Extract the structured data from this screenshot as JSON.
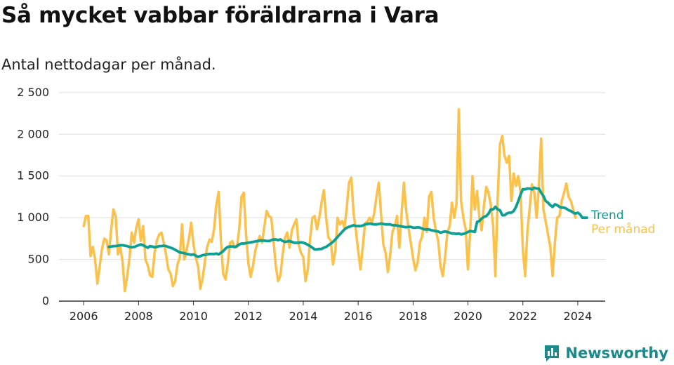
{
  "title": "Så mycket vabbar föräldrarna i Vara",
  "subtitle": "Antal nettodagar per månad.",
  "brand": {
    "name": "Newsworthy",
    "icon": "newsworthy-logo-icon",
    "color": "#1a8a8a"
  },
  "chart_data": {
    "type": "line",
    "xlabel": "",
    "ylabel": "",
    "xlim": [
      2005.1,
      2025.0
    ],
    "ylim": [
      0,
      2600
    ],
    "grid": true,
    "legend_placement": "right-end",
    "x_ticks": [
      2006,
      2008,
      2010,
      2012,
      2014,
      2016,
      2018,
      2020,
      2022,
      2024
    ],
    "x_tick_labels": [
      "2006",
      "2008",
      "2010",
      "2012",
      "2014",
      "2016",
      "2018",
      "2020",
      "2022",
      "2024"
    ],
    "y_ticks": [
      0,
      500,
      1000,
      1500,
      2000,
      2500
    ],
    "y_tick_labels": [
      "0",
      "500",
      "1 000",
      "1 500",
      "2 000",
      "2 500"
    ],
    "series": [
      {
        "name": "Per månad",
        "color": "#fbc14a",
        "start_year": 2006,
        "values": [
          900,
          1020,
          1020,
          540,
          650,
          500,
          210,
          420,
          620,
          750,
          730,
          560,
          850,
          1100,
          1020,
          560,
          650,
          470,
          120,
          300,
          500,
          820,
          700,
          880,
          980,
          720,
          900,
          500,
          430,
          310,
          290,
          580,
          720,
          800,
          820,
          700,
          560,
          380,
          330,
          180,
          240,
          440,
          520,
          920,
          500,
          610,
          750,
          940,
          680,
          520,
          420,
          150,
          270,
          480,
          650,
          740,
          710,
          860,
          1150,
          1310,
          720,
          330,
          260,
          450,
          700,
          720,
          640,
          650,
          860,
          1250,
          1300,
          800,
          450,
          290,
          420,
          600,
          700,
          780,
          700,
          900,
          1080,
          1020,
          1000,
          720,
          420,
          240,
          310,
          560,
          760,
          820,
          640,
          850,
          920,
          980,
          680,
          580,
          530,
          240,
          380,
          750,
          1000,
          1020,
          860,
          1000,
          1180,
          1330,
          1000,
          760,
          730,
          440,
          600,
          1000,
          920,
          960,
          880,
          1120,
          1420,
          1480,
          1050,
          850,
          610,
          380,
          650,
          930,
          950,
          1000,
          940,
          1050,
          1250,
          1420,
          1050,
          680,
          580,
          350,
          560,
          830,
          900,
          1020,
          640,
          1050,
          1420,
          1080,
          880,
          700,
          520,
          370,
          460,
          700,
          780,
          1000,
          830,
          1250,
          1310,
          1000,
          840,
          720,
          420,
          300,
          520,
          820,
          900,
          1180,
          1000,
          1170,
          2300,
          1200,
          1000,
          860,
          380,
          850,
          1500,
          1100,
          1320,
          1000,
          850,
          1150,
          1370,
          1300,
          1150,
          900,
          300,
          1250,
          1880,
          1980,
          1740,
          1660,
          1740,
          1200,
          1530,
          1380,
          1500,
          1300,
          620,
          300,
          840,
          1120,
          1400,
          1300,
          1000,
          1360,
          1950,
          1100,
          950,
          800,
          650,
          300,
          700,
          1000,
          1020,
          1200,
          1300,
          1410,
          1250,
          1200,
          1100,
          1000
        ]
      },
      {
        "name": "Trend",
        "color": "#0e9f94",
        "start_year": 2006.917,
        "values": [
          650,
          655,
          660,
          660,
          665,
          670,
          670,
          665,
          660,
          650,
          645,
          650,
          660,
          670,
          680,
          670,
          655,
          640,
          660,
          655,
          645,
          650,
          660,
          660,
          665,
          660,
          650,
          640,
          630,
          615,
          600,
          585,
          580,
          575,
          565,
          560,
          555,
          560,
          545,
          530,
          540,
          550,
          555,
          560,
          565,
          565,
          565,
          570,
          560,
          580,
          600,
          630,
          650,
          655,
          655,
          650,
          660,
          680,
          690,
          690,
          695,
          700,
          705,
          710,
          715,
          720,
          725,
          725,
          725,
          720,
          720,
          730,
          740,
          740,
          730,
          740,
          720,
          710,
          715,
          720,
          710,
          700,
          700,
          700,
          705,
          700,
          690,
          675,
          660,
          640,
          620,
          620,
          625,
          625,
          640,
          650,
          670,
          690,
          710,
          740,
          770,
          800,
          830,
          860,
          880,
          890,
          900,
          910,
          900,
          900,
          900,
          905,
          920,
          925,
          930,
          925,
          920,
          920,
          925,
          930,
          925,
          920,
          920,
          920,
          910,
          910,
          905,
          900,
          895,
          890,
          885,
          890,
          890,
          880,
          880,
          885,
          880,
          870,
          860,
          860,
          860,
          850,
          845,
          840,
          835,
          820,
          830,
          835,
          830,
          820,
          810,
          810,
          805,
          810,
          800,
          805,
          815,
          830,
          840,
          835,
          830,
          950,
          960,
          990,
          1010,
          1020,
          1050,
          1100,
          1100,
          1130,
          1100,
          1090,
          1030,
          1030,
          1050,
          1060,
          1060,
          1080,
          1130,
          1200,
          1280,
          1340,
          1340,
          1350,
          1350,
          1340,
          1360,
          1350,
          1350,
          1300,
          1260,
          1200,
          1180,
          1150,
          1130,
          1160,
          1150,
          1130,
          1120,
          1120,
          1110,
          1090,
          1080,
          1060,
          1050,
          1060,
          1040,
          1000,
          1000,
          1000
        ]
      }
    ]
  }
}
